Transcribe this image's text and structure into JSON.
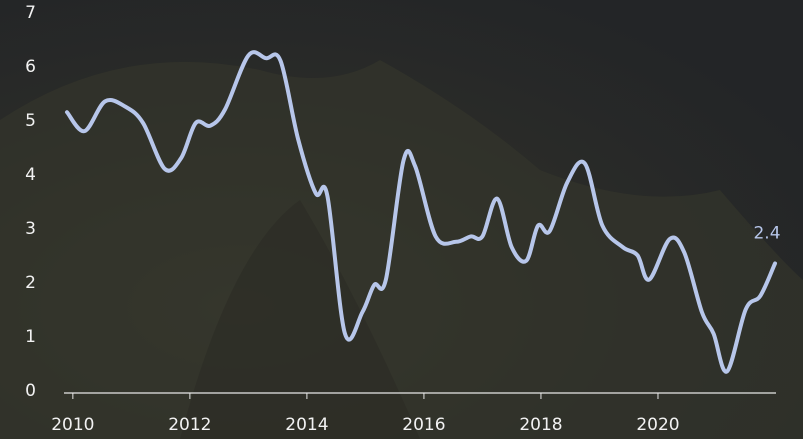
{
  "chart_data": {
    "type": "line",
    "xlim": [
      2009.9,
      2022
    ],
    "xticks": [
      2010,
      2012,
      2014,
      2016,
      2018,
      2020
    ],
    "ylim": [
      0,
      7
    ],
    "yticks": [
      0,
      1,
      2,
      3,
      4,
      5,
      6,
      7
    ],
    "series": [
      {
        "color": "#b7c6ea",
        "x": [
          2009.9,
          2010.2,
          2010.55,
          2010.9,
          2011.2,
          2011.57,
          2011.85,
          2012.1,
          2012.35,
          2012.6,
          2013.0,
          2013.3,
          2013.55,
          2013.85,
          2014.15,
          2014.35,
          2014.65,
          2014.95,
          2015.15,
          2015.35,
          2015.65,
          2015.85,
          2016.2,
          2016.55,
          2016.8,
          2017.0,
          2017.25,
          2017.5,
          2017.75,
          2017.95,
          2018.15,
          2018.45,
          2018.75,
          2019.05,
          2019.4,
          2019.65,
          2019.85,
          2020.2,
          2020.45,
          2020.75,
          2020.95,
          2021.18,
          2021.5,
          2021.75,
          2022.0
        ],
        "values": [
          5.2,
          4.85,
          5.4,
          5.3,
          5.0,
          4.15,
          4.35,
          5.0,
          4.95,
          5.25,
          6.25,
          6.2,
          6.15,
          4.7,
          3.7,
          3.65,
          1.1,
          1.5,
          2.0,
          2.1,
          4.3,
          4.2,
          2.9,
          2.8,
          2.9,
          2.9,
          3.6,
          2.7,
          2.45,
          3.1,
          3.0,
          3.9,
          4.25,
          3.1,
          2.7,
          2.55,
          2.1,
          2.85,
          2.6,
          1.5,
          1.1,
          0.4,
          1.55,
          1.8,
          2.4
        ],
        "value_labels": [
          null,
          null,
          null,
          null,
          null,
          null,
          null,
          null,
          null,
          null,
          null,
          null,
          null,
          null,
          null,
          null,
          null,
          null,
          null,
          null,
          null,
          null,
          null,
          null,
          null,
          null,
          null,
          null,
          null,
          null,
          null,
          null,
          null,
          null,
          null,
          null,
          null,
          null,
          null,
          null,
          null,
          null,
          null,
          null,
          "2.4"
        ]
      }
    ]
  }
}
